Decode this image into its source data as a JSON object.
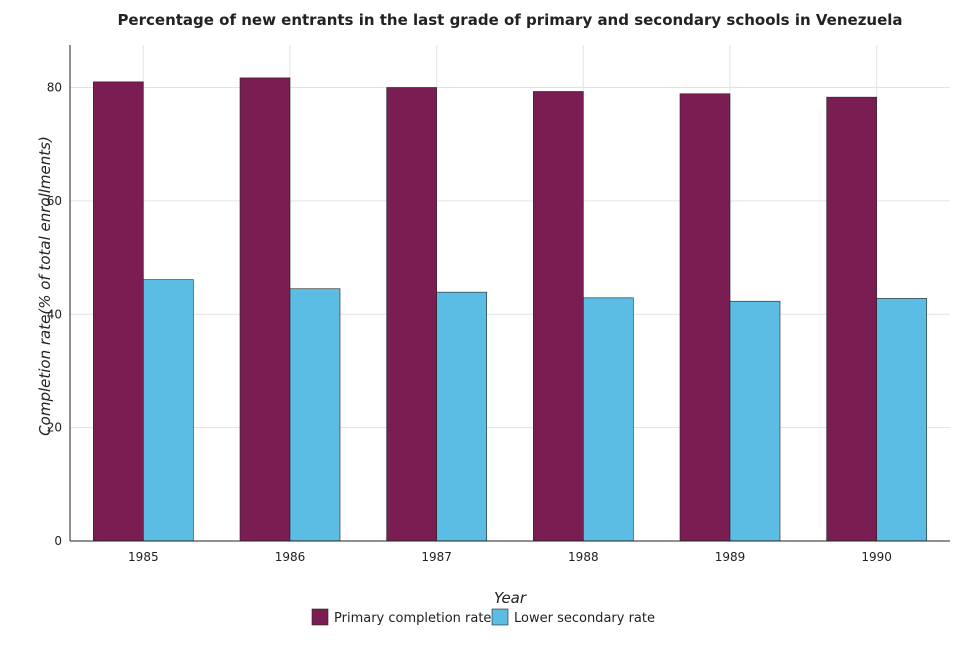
{
  "chart_data": {
    "type": "bar",
    "title": "Percentage of new entrants in the last grade of primary  and secondary schools in Venezuela",
    "xlabel": "Year",
    "ylabel": "Completion rate(% of total enrollments)",
    "categories": [
      "1985",
      "1986",
      "1987",
      "1988",
      "1989",
      "1990"
    ],
    "series": [
      {
        "name": "Primary completion rate",
        "color": "#7a1d52",
        "values": [
          81.0,
          81.7,
          80.0,
          79.3,
          78.9,
          78.3
        ]
      },
      {
        "name": "Lower secondary rate",
        "color": "#5bbde3",
        "values": [
          46.1,
          44.5,
          43.9,
          42.9,
          42.3,
          42.8
        ]
      }
    ],
    "ylim": [
      0,
      87.5
    ],
    "yticks": [
      0,
      20,
      40,
      60,
      80
    ],
    "grid": true,
    "legend_position": "bottom-center"
  }
}
